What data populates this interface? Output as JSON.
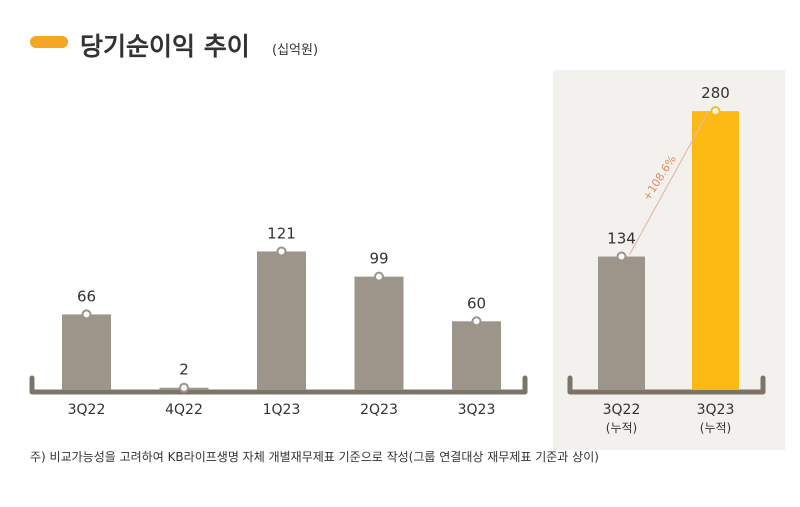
{
  "header": {
    "title": "당기순이익 추이",
    "unit": "(십억원)"
  },
  "chart_data": [
    {
      "type": "bar",
      "categories": [
        "3Q22",
        "4Q22",
        "1Q23",
        "2Q23",
        "3Q23"
      ],
      "values": [
        66,
        2,
        121,
        99,
        60
      ],
      "ylim": [
        0,
        150
      ]
    },
    {
      "type": "bar",
      "categories": [
        "3Q22",
        "3Q23"
      ],
      "sublabels": [
        "(누적)",
        "(누적)"
      ],
      "values": [
        134,
        280
      ],
      "ylim": [
        0,
        300
      ],
      "annotation": "+108.6%"
    }
  ],
  "footnote": "주) 비교가능성을 고려하여 KB라이프생명 자체 개별재무제표 기준으로 작성(그룹 연결대상 재무제표 기준과 상이)",
  "colors": {
    "accent": "#f5a623",
    "bar": "#9d948a",
    "highlight_bar": "#fdb913",
    "panel_bg": "#f3f1ee",
    "axis": "#7d7468",
    "annotation": "#e58b5f"
  }
}
